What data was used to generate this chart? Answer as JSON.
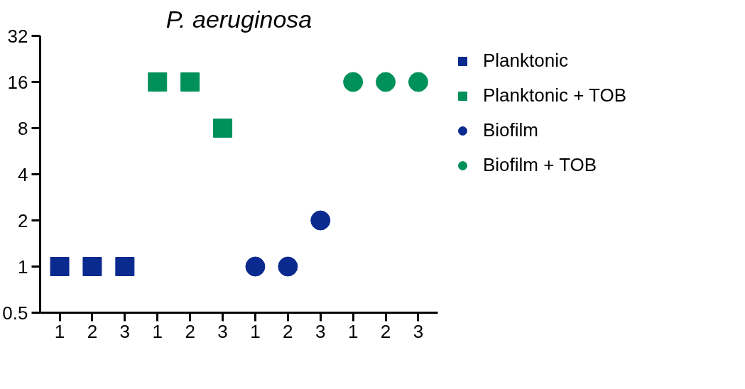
{
  "chart_data": {
    "type": "scatter",
    "title": "P. aeruginosa",
    "categories": [
      "1",
      "2",
      "3",
      "1",
      "2",
      "3",
      "1",
      "2",
      "3",
      "1",
      "2",
      "3"
    ],
    "series": [
      {
        "name": "Planktonic",
        "color": "#0a2a8f",
        "marker": "square",
        "values": [
          1,
          1,
          1,
          null,
          null,
          null,
          null,
          null,
          null,
          null,
          null,
          null
        ]
      },
      {
        "name": "Planktonic + TOB",
        "color": "#00905a",
        "marker": "square",
        "values": [
          null,
          null,
          null,
          16,
          16,
          8,
          null,
          null,
          null,
          null,
          null,
          null
        ]
      },
      {
        "name": "Biofilm",
        "color": "#0a2a8f",
        "marker": "circle",
        "values": [
          null,
          null,
          null,
          null,
          null,
          null,
          1,
          1,
          2,
          null,
          null,
          null
        ]
      },
      {
        "name": "Biofilm + TOB",
        "color": "#00905a",
        "marker": "circle",
        "values": [
          null,
          null,
          null,
          null,
          null,
          null,
          null,
          null,
          null,
          16,
          16,
          16
        ]
      }
    ],
    "log": true,
    "ylim": [
      0.5,
      32
    ],
    "yticks": [
      0.5,
      1,
      2,
      4,
      8,
      16,
      32
    ],
    "grid": false,
    "legend": "right"
  }
}
